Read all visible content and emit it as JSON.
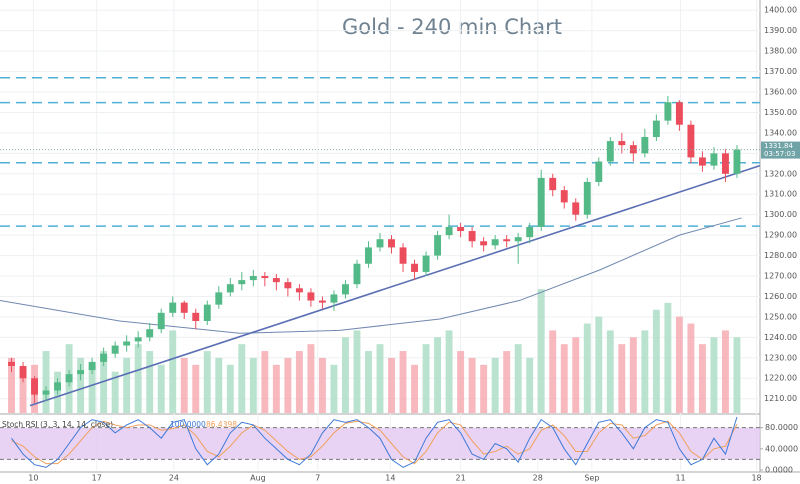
{
  "chart_data": {
    "type": "candlestick",
    "title": "Gold - 240 min Chart",
    "xlim": [
      -1,
      65
    ],
    "xticks": [
      {
        "value": 1.9,
        "label": "10"
      },
      {
        "value": 7.4,
        "label": "17"
      },
      {
        "value": 14.1,
        "label": "24"
      },
      {
        "value": 21.4,
        "label": "Aug"
      },
      {
        "value": 26.6,
        "label": "7"
      },
      {
        "value": 32.9,
        "label": "14"
      },
      {
        "value": 39.0,
        "label": "21"
      },
      {
        "value": 45.7,
        "label": "28"
      },
      {
        "value": 50.4,
        "label": "Sep"
      },
      {
        "value": 58.1,
        "label": "11"
      },
      {
        "value": 64.7,
        "label": "18"
      }
    ],
    "ylim": [
      1203,
      1405
    ],
    "yticks": [
      {
        "value": 1210,
        "label": "1210.00"
      },
      {
        "value": 1220,
        "label": "1220.00"
      },
      {
        "value": 1230,
        "label": "1230.00"
      },
      {
        "value": 1240,
        "label": "1240.00"
      },
      {
        "value": 1250,
        "label": "1250.00"
      },
      {
        "value": 1260,
        "label": "1260.00"
      },
      {
        "value": 1270,
        "label": "1270.00"
      },
      {
        "value": 1280,
        "label": "1280.00"
      },
      {
        "value": 1290,
        "label": "1290.00"
      },
      {
        "value": 1300,
        "label": "1300.00"
      },
      {
        "value": 1310,
        "label": "1310.00"
      },
      {
        "value": 1320,
        "label": "1320.00"
      },
      {
        "value": 1330,
        "label": "1330.00"
      },
      {
        "value": 1340,
        "label": "1340.00"
      },
      {
        "value": 1350,
        "label": "1350.00"
      },
      {
        "value": 1360,
        "label": "1360.00"
      },
      {
        "value": 1370,
        "label": "1370.00"
      },
      {
        "value": 1380,
        "label": "1380.00"
      },
      {
        "value": 1390,
        "label": "1390.00"
      },
      {
        "value": 1400,
        "label": "1400.00"
      }
    ],
    "grid": true,
    "up_color": "#53b987",
    "down_color": "#eb4d5c",
    "open": [
      1228,
      1226,
      1220,
      1212,
      1214,
      1218,
      1222,
      1224,
      1228,
      1232,
      1236,
      1238,
      1240,
      1244,
      1252,
      1257,
      1252,
      1248,
      1256,
      1262,
      1266,
      1268,
      1270,
      1269,
      1267,
      1264,
      1262,
      1258,
      1257,
      1261,
      1266,
      1276,
      1284,
      1288,
      1284,
      1276,
      1272,
      1280,
      1290,
      1294,
      1292,
      1287,
      1285,
      1288,
      1287,
      1289,
      1294,
      1318,
      1312,
      1306,
      1300,
      1316,
      1326,
      1336,
      1334,
      1330,
      1338,
      1346,
      1355,
      1344,
      1328,
      1324,
      1330,
      1320
    ],
    "high": [
      1230,
      1228,
      1221,
      1216,
      1220,
      1224,
      1227,
      1230,
      1235,
      1238,
      1241,
      1243,
      1247,
      1254,
      1260,
      1258,
      1254,
      1258,
      1265,
      1269,
      1272,
      1273,
      1272,
      1271,
      1269,
      1266,
      1264,
      1260,
      1263,
      1268,
      1278,
      1287,
      1291,
      1290,
      1286,
      1278,
      1282,
      1292,
      1300,
      1296,
      1294,
      1289,
      1290,
      1290,
      1291,
      1296,
      1322,
      1320,
      1314,
      1308,
      1318,
      1328,
      1338,
      1340,
      1336,
      1342,
      1349,
      1358,
      1356,
      1346,
      1331,
      1333,
      1332,
      1334
    ],
    "low": [
      1223,
      1218,
      1208,
      1209,
      1212,
      1216,
      1219,
      1222,
      1226,
      1230,
      1233,
      1235,
      1238,
      1242,
      1250,
      1249,
      1244,
      1246,
      1254,
      1260,
      1263,
      1265,
      1265,
      1263,
      1260,
      1258,
      1255,
      1254,
      1253,
      1259,
      1264,
      1274,
      1282,
      1281,
      1272,
      1268,
      1270,
      1278,
      1288,
      1289,
      1284,
      1282,
      1283,
      1284,
      1276,
      1286,
      1292,
      1309,
      1303,
      1297,
      1298,
      1314,
      1324,
      1330,
      1326,
      1328,
      1336,
      1344,
      1341,
      1325,
      1321,
      1322,
      1316,
      1318
    ],
    "close": [
      1226,
      1220,
      1212,
      1214,
      1218,
      1222,
      1224,
      1228,
      1232,
      1236,
      1238,
      1240,
      1244,
      1252,
      1257,
      1252,
      1248,
      1256,
      1262,
      1266,
      1268,
      1270,
      1269,
      1267,
      1264,
      1262,
      1258,
      1257,
      1261,
      1266,
      1276,
      1284,
      1288,
      1284,
      1276,
      1272,
      1280,
      1290,
      1294,
      1292,
      1287,
      1285,
      1288,
      1287,
      1289,
      1294,
      1318,
      1312,
      1306,
      1300,
      1316,
      1326,
      1336,
      1334,
      1330,
      1338,
      1346,
      1355,
      1344,
      1328,
      1324,
      1330,
      1320,
      1331.84
    ],
    "countdown": "03:57:03",
    "volume": {
      "ylim": [
        0,
        300
      ],
      "up_color": "#a9dcc3",
      "down_color": "#f5a6ae",
      "values": [
        40,
        30,
        35,
        45,
        30,
        50,
        40,
        35,
        45,
        30,
        40,
        50,
        45,
        35,
        60,
        40,
        35,
        45,
        40,
        35,
        50,
        40,
        45,
        35,
        40,
        45,
        50,
        40,
        35,
        55,
        60,
        45,
        50,
        40,
        45,
        35,
        50,
        55,
        60,
        45,
        40,
        35,
        40,
        45,
        50,
        40,
        90,
        60,
        50,
        55,
        65,
        70,
        60,
        50,
        55,
        60,
        75,
        80,
        70,
        65,
        50,
        55,
        60,
        55
      ]
    },
    "levels": {
      "color": "#4fb0d6",
      "values": [
        1367,
        1354.8,
        1325.4,
        1294.4
      ]
    },
    "trendline": {
      "color": "#5b6fb5",
      "x": [
        1.6,
        65
      ],
      "y": [
        1206.6,
        1324
      ]
    },
    "moving_average": {
      "color": "#7088b0",
      "x": [
        -1,
        9.4,
        19.8,
        28.5,
        37.2,
        44.1,
        51.1,
        58.0,
        63.4
      ],
      "y": [
        1258,
        1248,
        1242,
        1243.4,
        1249,
        1258,
        1273,
        1290,
        1298.4
      ]
    },
    "stoch": {
      "label": "Stoch RSI (3, 3, 14, 14, close)",
      "ylim": [
        0,
        100
      ],
      "band": [
        20,
        80
      ],
      "band_color": "#e3c8f2",
      "yticks": [
        {
          "value": 80,
          "label": "80.0000"
        },
        {
          "value": 40,
          "label": "40.0000"
        },
        {
          "value": 0,
          "label": "0.0000"
        }
      ],
      "k": {
        "color": "#3c78d8",
        "last_label": "100.0000",
        "values": [
          60,
          30,
          10,
          5,
          20,
          50,
          80,
          95,
          90,
          70,
          85,
          95,
          80,
          60,
          90,
          95,
          40,
          10,
          30,
          70,
          90,
          85,
          60,
          40,
          20,
          10,
          30,
          70,
          95,
          90,
          95,
          80,
          60,
          20,
          5,
          15,
          60,
          90,
          95,
          70,
          30,
          20,
          50,
          40,
          15,
          60,
          95,
          80,
          40,
          10,
          50,
          90,
          95,
          70,
          40,
          80,
          95,
          90,
          40,
          10,
          20,
          60,
          30,
          100
        ]
      },
      "d": {
        "color": "#f0a05a",
        "last_label": "86.4398",
        "values": [
          55,
          45,
          25,
          12,
          12,
          30,
          55,
          80,
          92,
          85,
          80,
          85,
          85,
          75,
          78,
          85,
          65,
          35,
          25,
          45,
          70,
          85,
          75,
          55,
          35,
          20,
          25,
          45,
          70,
          88,
          92,
          88,
          75,
          50,
          25,
          12,
          35,
          70,
          90,
          85,
          55,
          30,
          35,
          45,
          30,
          40,
          75,
          85,
          65,
          35,
          35,
          70,
          88,
          85,
          60,
          65,
          85,
          92,
          70,
          35,
          20,
          40,
          45,
          86.44
        ]
      }
    }
  }
}
